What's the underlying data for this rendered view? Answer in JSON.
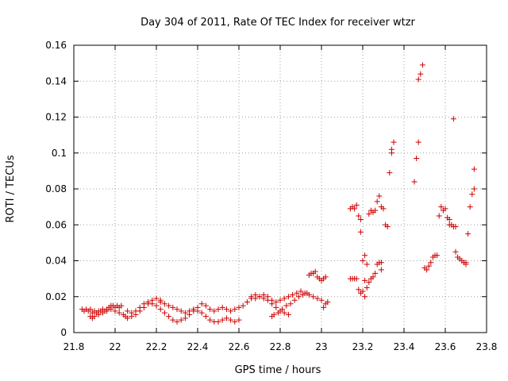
{
  "chart_data": {
    "type": "scatter",
    "title": "Day 304 of 2011, Rate Of TEC Index for receiver wtzr",
    "xlabel": "GPS time / hours",
    "ylabel": "ROTI / TECUs",
    "xlim": [
      21.8,
      23.8
    ],
    "ylim": [
      0,
      0.16
    ],
    "x_ticks": [
      "21.8",
      "22",
      "22.2",
      "22.4",
      "22.6",
      "22.8",
      "23",
      "23.2",
      "23.4",
      "23.6",
      "23.8"
    ],
    "y_ticks": [
      "0",
      "0.02",
      "0.04",
      "0.06",
      "0.08",
      "0.1",
      "0.12",
      "0.14",
      "0.16"
    ],
    "grid": true,
    "marker": "plus",
    "color": "#cc0000",
    "series": [
      {
        "points": [
          [
            21.84,
            0.013
          ],
          [
            21.85,
            0.012
          ],
          [
            21.86,
            0.013
          ],
          [
            21.87,
            0.012
          ],
          [
            21.88,
            0.013
          ],
          [
            21.89,
            0.011
          ],
          [
            21.9,
            0.012
          ],
          [
            21.91,
            0.011
          ],
          [
            21.92,
            0.012
          ],
          [
            21.93,
            0.012
          ],
          [
            21.94,
            0.013
          ],
          [
            21.95,
            0.012
          ],
          [
            21.96,
            0.013
          ],
          [
            21.97,
            0.014
          ],
          [
            21.98,
            0.015
          ],
          [
            21.99,
            0.015
          ],
          [
            22.0,
            0.014
          ],
          [
            22.01,
            0.015
          ],
          [
            22.02,
            0.014
          ],
          [
            22.03,
            0.015
          ],
          [
            21.88,
            0.009
          ],
          [
            21.89,
            0.008
          ],
          [
            21.9,
            0.009
          ],
          [
            21.92,
            0.01
          ],
          [
            21.94,
            0.011
          ],
          [
            21.96,
            0.012
          ],
          [
            21.98,
            0.013
          ],
          [
            22.0,
            0.012
          ],
          [
            22.02,
            0.011
          ],
          [
            22.04,
            0.01
          ],
          [
            22.05,
            0.009
          ],
          [
            22.06,
            0.008
          ],
          [
            22.08,
            0.009
          ],
          [
            22.1,
            0.01
          ],
          [
            22.12,
            0.012
          ],
          [
            22.14,
            0.014
          ],
          [
            22.16,
            0.016
          ],
          [
            22.18,
            0.018
          ],
          [
            22.2,
            0.019
          ],
          [
            22.22,
            0.018
          ],
          [
            22.06,
            0.012
          ],
          [
            22.08,
            0.011
          ],
          [
            22.1,
            0.012
          ],
          [
            22.12,
            0.014
          ],
          [
            22.14,
            0.016
          ],
          [
            22.16,
            0.017
          ],
          [
            22.18,
            0.016
          ],
          [
            22.2,
            0.015
          ],
          [
            22.22,
            0.013
          ],
          [
            22.24,
            0.011
          ],
          [
            22.26,
            0.009
          ],
          [
            22.28,
            0.007
          ],
          [
            22.3,
            0.006
          ],
          [
            22.32,
            0.007
          ],
          [
            22.34,
            0.008
          ],
          [
            22.36,
            0.01
          ],
          [
            22.38,
            0.012
          ],
          [
            22.4,
            0.014
          ],
          [
            22.42,
            0.016
          ],
          [
            22.44,
            0.015
          ],
          [
            22.22,
            0.017
          ],
          [
            22.24,
            0.016
          ],
          [
            22.26,
            0.015
          ],
          [
            22.28,
            0.014
          ],
          [
            22.3,
            0.013
          ],
          [
            22.32,
            0.012
          ],
          [
            22.34,
            0.011
          ],
          [
            22.36,
            0.012
          ],
          [
            22.38,
            0.013
          ],
          [
            22.4,
            0.012
          ],
          [
            22.42,
            0.011
          ],
          [
            22.44,
            0.009
          ],
          [
            22.46,
            0.007
          ],
          [
            22.48,
            0.006
          ],
          [
            22.5,
            0.006
          ],
          [
            22.52,
            0.007
          ],
          [
            22.54,
            0.008
          ],
          [
            22.56,
            0.007
          ],
          [
            22.58,
            0.006
          ],
          [
            22.6,
            0.007
          ],
          [
            22.46,
            0.013
          ],
          [
            22.48,
            0.012
          ],
          [
            22.5,
            0.013
          ],
          [
            22.52,
            0.014
          ],
          [
            22.54,
            0.013
          ],
          [
            22.56,
            0.012
          ],
          [
            22.58,
            0.013
          ],
          [
            22.6,
            0.014
          ],
          [
            22.62,
            0.015
          ],
          [
            22.64,
            0.017
          ],
          [
            22.66,
            0.019
          ],
          [
            22.68,
            0.021
          ],
          [
            22.7,
            0.02
          ],
          [
            22.72,
            0.019
          ],
          [
            22.74,
            0.018
          ],
          [
            22.76,
            0.016
          ],
          [
            22.78,
            0.014
          ],
          [
            22.8,
            0.012
          ],
          [
            22.82,
            0.011
          ],
          [
            22.84,
            0.01
          ],
          [
            22.66,
            0.02
          ],
          [
            22.68,
            0.019
          ],
          [
            22.7,
            0.02
          ],
          [
            22.72,
            0.021
          ],
          [
            22.74,
            0.02
          ],
          [
            22.76,
            0.018
          ],
          [
            22.78,
            0.017
          ],
          [
            22.8,
            0.018
          ],
          [
            22.82,
            0.019
          ],
          [
            22.84,
            0.02
          ],
          [
            22.86,
            0.021
          ],
          [
            22.88,
            0.022
          ],
          [
            22.9,
            0.023
          ],
          [
            22.92,
            0.022
          ],
          [
            22.94,
            0.021
          ],
          [
            22.96,
            0.02
          ],
          [
            22.98,
            0.019
          ],
          [
            23.0,
            0.018
          ],
          [
            23.02,
            0.016
          ],
          [
            23.03,
            0.017
          ],
          [
            22.76,
            0.009
          ],
          [
            22.77,
            0.01
          ],
          [
            22.79,
            0.011
          ],
          [
            22.81,
            0.013
          ],
          [
            22.83,
            0.015
          ],
          [
            22.85,
            0.016
          ],
          [
            22.87,
            0.018
          ],
          [
            22.89,
            0.02
          ],
          [
            22.91,
            0.021
          ],
          [
            22.93,
            0.022
          ],
          [
            22.94,
            0.032
          ],
          [
            22.95,
            0.033
          ],
          [
            22.96,
            0.033
          ],
          [
            22.97,
            0.034
          ],
          [
            22.98,
            0.031
          ],
          [
            22.99,
            0.03
          ],
          [
            23.0,
            0.029
          ],
          [
            23.01,
            0.03
          ],
          [
            23.02,
            0.031
          ],
          [
            23.01,
            0.014
          ],
          [
            23.14,
            0.069
          ],
          [
            23.15,
            0.07
          ],
          [
            23.16,
            0.069
          ],
          [
            23.17,
            0.071
          ],
          [
            23.18,
            0.065
          ],
          [
            23.19,
            0.063
          ],
          [
            23.19,
            0.056
          ],
          [
            23.14,
            0.03
          ],
          [
            23.15,
            0.03
          ],
          [
            23.16,
            0.03
          ],
          [
            23.17,
            0.03
          ],
          [
            23.18,
            0.024
          ],
          [
            23.19,
            0.022
          ],
          [
            23.2,
            0.023
          ],
          [
            23.21,
            0.02
          ],
          [
            23.22,
            0.025
          ],
          [
            23.2,
            0.04
          ],
          [
            23.21,
            0.043
          ],
          [
            23.22,
            0.038
          ],
          [
            23.21,
            0.029
          ],
          [
            23.23,
            0.066
          ],
          [
            23.24,
            0.068
          ],
          [
            23.25,
            0.067
          ],
          [
            23.26,
            0.068
          ],
          [
            23.27,
            0.073
          ],
          [
            23.28,
            0.076
          ],
          [
            23.29,
            0.07
          ],
          [
            23.3,
            0.069
          ],
          [
            23.23,
            0.028
          ],
          [
            23.24,
            0.03
          ],
          [
            23.25,
            0.031
          ],
          [
            23.26,
            0.033
          ],
          [
            23.27,
            0.038
          ],
          [
            23.28,
            0.039
          ],
          [
            23.29,
            0.039
          ],
          [
            23.29,
            0.035
          ],
          [
            23.31,
            0.06
          ],
          [
            23.32,
            0.059
          ],
          [
            23.33,
            0.089
          ],
          [
            23.34,
            0.1
          ],
          [
            23.34,
            0.102
          ],
          [
            23.35,
            0.106
          ],
          [
            23.45,
            0.084
          ],
          [
            23.46,
            0.097
          ],
          [
            23.47,
            0.106
          ],
          [
            23.47,
            0.141
          ],
          [
            23.48,
            0.144
          ],
          [
            23.49,
            0.149
          ],
          [
            23.5,
            0.036
          ],
          [
            23.51,
            0.035
          ],
          [
            23.52,
            0.037
          ],
          [
            23.53,
            0.039
          ],
          [
            23.54,
            0.042
          ],
          [
            23.55,
            0.043
          ],
          [
            23.56,
            0.043
          ],
          [
            23.57,
            0.065
          ],
          [
            23.58,
            0.07
          ],
          [
            23.59,
            0.068
          ],
          [
            23.6,
            0.069
          ],
          [
            23.61,
            0.064
          ],
          [
            23.62,
            0.063
          ],
          [
            23.62,
            0.06
          ],
          [
            23.63,
            0.06
          ],
          [
            23.64,
            0.059
          ],
          [
            23.64,
            0.119
          ],
          [
            23.65,
            0.059
          ],
          [
            23.65,
            0.045
          ],
          [
            23.66,
            0.042
          ],
          [
            23.67,
            0.041
          ],
          [
            23.68,
            0.04
          ],
          [
            23.69,
            0.039
          ],
          [
            23.7,
            0.039
          ],
          [
            23.7,
            0.038
          ],
          [
            23.71,
            0.055
          ],
          [
            23.72,
            0.07
          ],
          [
            23.73,
            0.077
          ],
          [
            23.74,
            0.08
          ],
          [
            23.74,
            0.091
          ]
        ]
      }
    ]
  }
}
